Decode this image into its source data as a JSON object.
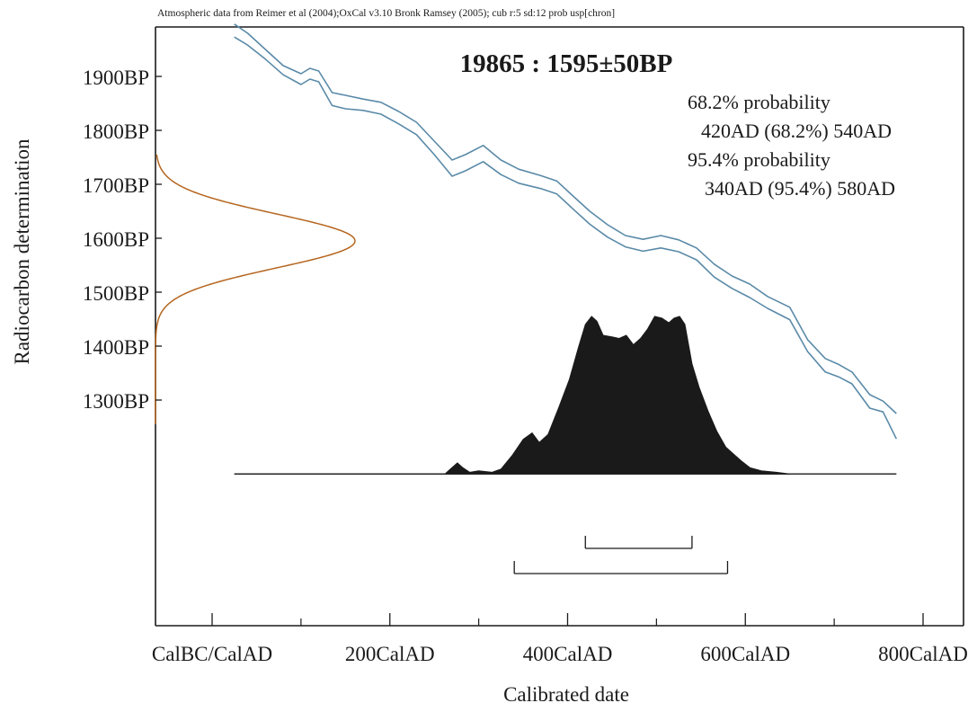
{
  "colors": {
    "axis": "#1a1a1a",
    "curve": "#5a8aa8",
    "gaussian": "#b5651d",
    "posterior_fill": "#1a1a1a"
  },
  "chart_data": {
    "type": "area",
    "header": "Atmospheric data from Reimer et al (2004);OxCal v3.10 Bronk Ramsey (2005); cub r:5 sd:12 prob usp[chron]",
    "title": "19865 : 1595±50BP",
    "xlabel": "Calibrated date",
    "ylabel": "Radiocarbon determination",
    "x_range": [
      -60,
      800
    ],
    "y_range": [
      1080,
      1980
    ],
    "x_ticks": [
      {
        "value": 0,
        "label": "CalBC/CalAD"
      },
      {
        "value": 200,
        "label": "200CalAD"
      },
      {
        "value": 400,
        "label": "400CalAD"
      },
      {
        "value": 600,
        "label": "600CalAD"
      },
      {
        "value": 800,
        "label": "800CalAD"
      }
    ],
    "x_minor_ticks": [
      100,
      300,
      500,
      700
    ],
    "y_ticks": [
      {
        "value": 1900,
        "label": "1900BP"
      },
      {
        "value": 1800,
        "label": "1800BP"
      },
      {
        "value": 1700,
        "label": "1700BP"
      },
      {
        "value": 1600,
        "label": "1600BP"
      },
      {
        "value": 1500,
        "label": "1500BP"
      },
      {
        "value": 1400,
        "label": "1400BP"
      },
      {
        "value": 1300,
        "label": "1300BP"
      }
    ],
    "probability_text": [
      "68.2% probability",
      "420AD (68.2%) 540AD",
      "95.4% probability",
      "340AD (95.4%) 580AD"
    ],
    "measurement": {
      "mean": 1595,
      "sd": 50
    },
    "calibration_curve": {
      "upper": [
        [
          25,
          1997
        ],
        [
          40,
          1980
        ],
        [
          60,
          1950
        ],
        [
          80,
          1920
        ],
        [
          100,
          1905
        ],
        [
          110,
          1915
        ],
        [
          120,
          1910
        ],
        [
          135,
          1870
        ],
        [
          150,
          1865
        ],
        [
          170,
          1858
        ],
        [
          190,
          1852
        ],
        [
          210,
          1835
        ],
        [
          230,
          1815
        ],
        [
          250,
          1780
        ],
        [
          270,
          1745
        ],
        [
          285,
          1755
        ],
        [
          305,
          1772
        ],
        [
          325,
          1745
        ],
        [
          345,
          1728
        ],
        [
          370,
          1716
        ],
        [
          388,
          1706
        ],
        [
          405,
          1680
        ],
        [
          425,
          1650
        ],
        [
          445,
          1625
        ],
        [
          465,
          1605
        ],
        [
          485,
          1598
        ],
        [
          505,
          1605
        ],
        [
          525,
          1597
        ],
        [
          545,
          1582
        ],
        [
          565,
          1552
        ],
        [
          585,
          1530
        ],
        [
          605,
          1515
        ],
        [
          625,
          1492
        ],
        [
          650,
          1472
        ],
        [
          670,
          1412
        ],
        [
          690,
          1377
        ],
        [
          705,
          1366
        ],
        [
          720,
          1352
        ],
        [
          740,
          1310
        ],
        [
          755,
          1298
        ],
        [
          770,
          1275
        ]
      ],
      "lower": [
        [
          25,
          1973
        ],
        [
          40,
          1958
        ],
        [
          60,
          1932
        ],
        [
          80,
          1903
        ],
        [
          100,
          1885
        ],
        [
          110,
          1895
        ],
        [
          120,
          1890
        ],
        [
          135,
          1846
        ],
        [
          150,
          1840
        ],
        [
          170,
          1837
        ],
        [
          190,
          1830
        ],
        [
          210,
          1812
        ],
        [
          230,
          1792
        ],
        [
          250,
          1755
        ],
        [
          270,
          1715
        ],
        [
          285,
          1725
        ],
        [
          305,
          1742
        ],
        [
          325,
          1718
        ],
        [
          345,
          1702
        ],
        [
          370,
          1692
        ],
        [
          388,
          1682
        ],
        [
          405,
          1656
        ],
        [
          425,
          1626
        ],
        [
          445,
          1602
        ],
        [
          465,
          1584
        ],
        [
          485,
          1576
        ],
        [
          505,
          1582
        ],
        [
          525,
          1575
        ],
        [
          545,
          1560
        ],
        [
          565,
          1528
        ],
        [
          585,
          1507
        ],
        [
          605,
          1490
        ],
        [
          625,
          1470
        ],
        [
          650,
          1449
        ],
        [
          670,
          1390
        ],
        [
          690,
          1352
        ],
        [
          705,
          1343
        ],
        [
          720,
          1330
        ],
        [
          740,
          1285
        ],
        [
          755,
          1278
        ],
        [
          770,
          1228
        ]
      ]
    },
    "posterior": {
      "baseline_bp": 1163,
      "peak_bp": 1455,
      "max_density": 1.0,
      "x_extent": [
        25,
        770
      ],
      "points": [
        [
          25,
          0
        ],
        [
          262,
          0
        ],
        [
          268,
          0.03
        ],
        [
          276,
          0.07
        ],
        [
          282,
          0.04
        ],
        [
          290,
          0.01
        ],
        [
          300,
          0.02
        ],
        [
          315,
          0.01
        ],
        [
          325,
          0.03
        ],
        [
          338,
          0.12
        ],
        [
          350,
          0.22
        ],
        [
          360,
          0.26
        ],
        [
          368,
          0.2
        ],
        [
          378,
          0.25
        ],
        [
          390,
          0.42
        ],
        [
          402,
          0.6
        ],
        [
          412,
          0.8
        ],
        [
          420,
          0.95
        ],
        [
          427,
          1.0
        ],
        [
          433,
          0.97
        ],
        [
          440,
          0.88
        ],
        [
          450,
          0.87
        ],
        [
          458,
          0.86
        ],
        [
          466,
          0.88
        ],
        [
          474,
          0.82
        ],
        [
          482,
          0.86
        ],
        [
          490,
          0.92
        ],
        [
          498,
          1.0
        ],
        [
          506,
          0.99
        ],
        [
          514,
          0.96
        ],
        [
          520,
          0.99
        ],
        [
          526,
          1.0
        ],
        [
          532,
          0.95
        ],
        [
          540,
          0.7
        ],
        [
          548,
          0.55
        ],
        [
          558,
          0.4
        ],
        [
          568,
          0.27
        ],
        [
          578,
          0.17
        ],
        [
          588,
          0.12
        ],
        [
          596,
          0.08
        ],
        [
          605,
          0.04
        ],
        [
          618,
          0.02
        ],
        [
          635,
          0.01
        ],
        [
          650,
          0
        ]
      ]
    },
    "ranges": [
      {
        "level": "68.2%",
        "from": 420,
        "to": 540
      },
      {
        "level": "95.4%",
        "from": 340,
        "to": 580
      }
    ]
  }
}
